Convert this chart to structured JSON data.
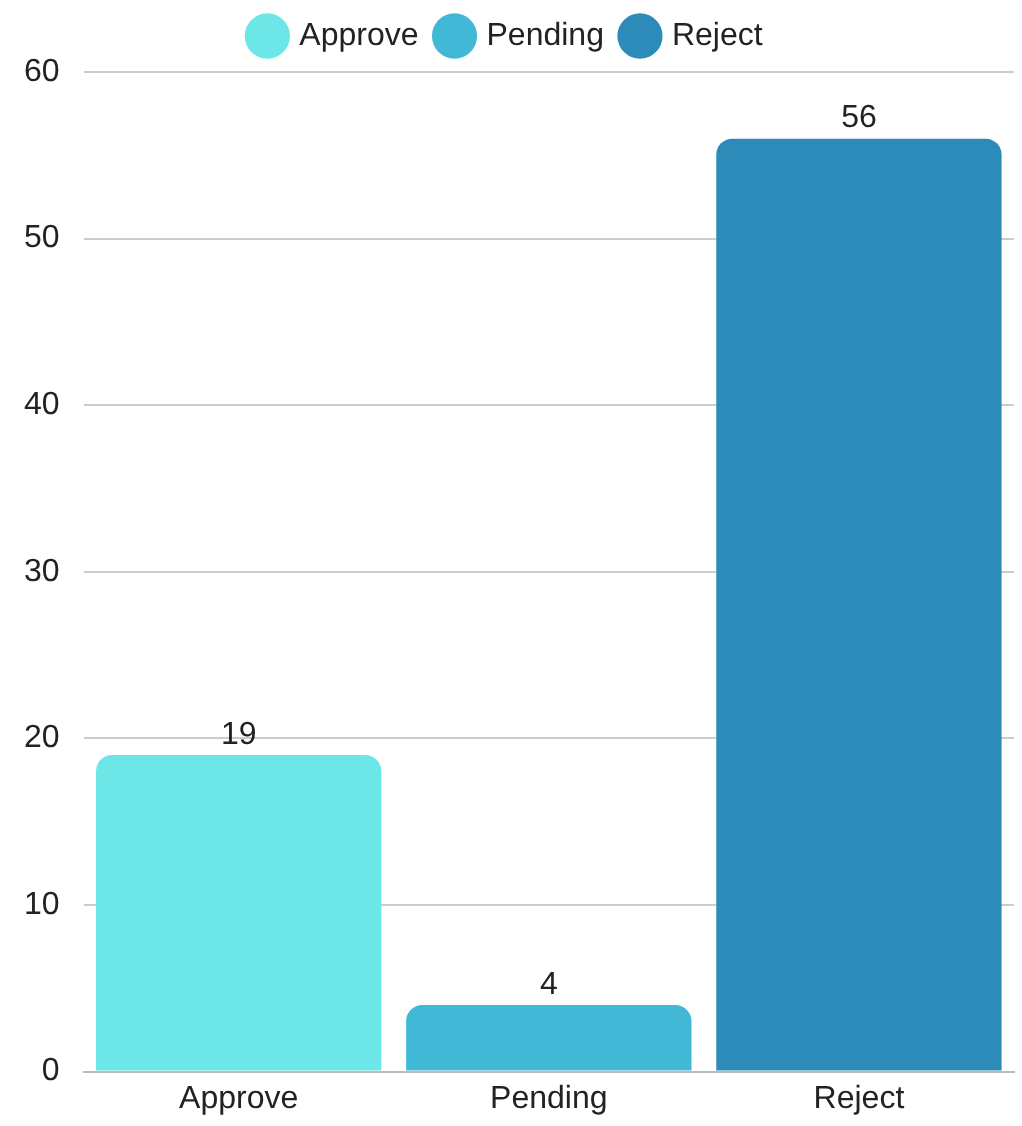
{
  "chart_data": {
    "type": "bar",
    "categories": [
      "Approve",
      "Pending",
      "Reject"
    ],
    "series": [
      {
        "name": "Approve",
        "color": "#6de6e8",
        "values": [
          19,
          null,
          null
        ]
      },
      {
        "name": "Pending",
        "color": "#41b8d6",
        "values": [
          null,
          4,
          null
        ]
      },
      {
        "name": "Reject",
        "color": "#2d8bba",
        "values": [
          null,
          null,
          56
        ]
      }
    ],
    "ylim": [
      0,
      60
    ],
    "yticks": [
      0,
      10,
      20,
      30,
      40,
      50,
      60
    ],
    "grid": "y",
    "legend": "top",
    "data_labels": true
  }
}
